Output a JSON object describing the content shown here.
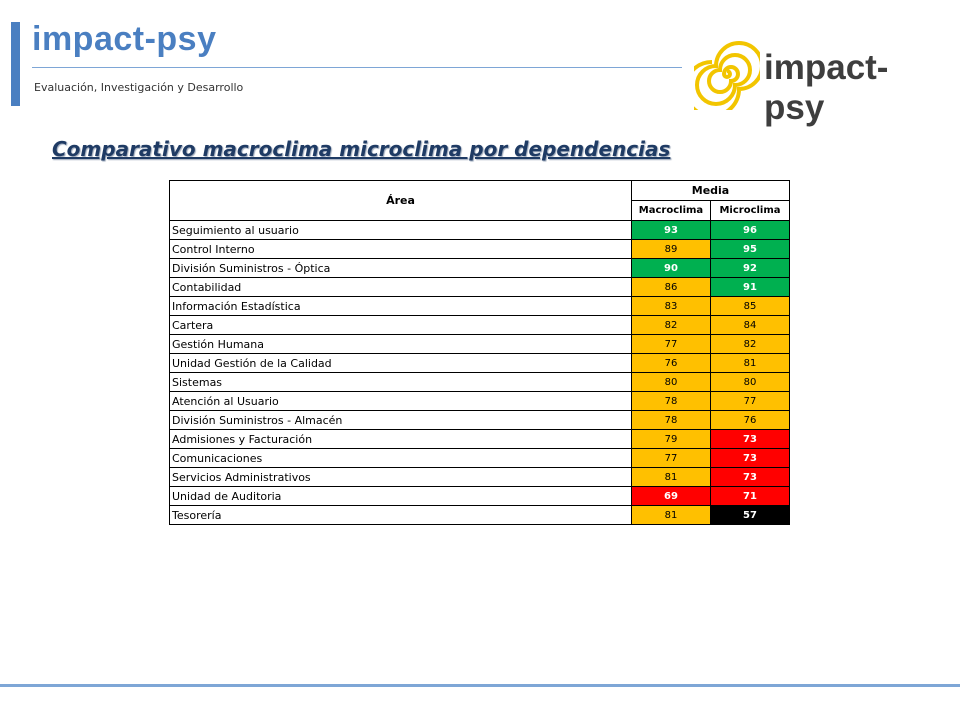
{
  "header": {
    "title": "impact-psy",
    "subtitle": "Evaluación, Investigación y Desarrollo",
    "logo_text": "impact-psy",
    "accent_color": "#4a7fc1"
  },
  "section_title": "Comparativo macroclima microclima por dependencias",
  "table": {
    "col_area": "Área",
    "col_group": "Media",
    "col_macro": "Macroclima",
    "col_micro": "Microclima",
    "rows": [
      {
        "area": "Seguimiento al usuario",
        "macro": "93",
        "micro": "96",
        "macro_color": "green",
        "micro_color": "green"
      },
      {
        "area": "Control Interno",
        "macro": "89",
        "micro": "95",
        "macro_color": "yellow",
        "micro_color": "green"
      },
      {
        "area": "División Suministros - Óptica",
        "macro": "90",
        "micro": "92",
        "macro_color": "green",
        "micro_color": "green"
      },
      {
        "area": "Contabilidad",
        "macro": "86",
        "micro": "91",
        "macro_color": "yellow",
        "micro_color": "green"
      },
      {
        "area": "Información Estadística",
        "macro": "83",
        "micro": "85",
        "macro_color": "yellow",
        "micro_color": "yellow"
      },
      {
        "area": "Cartera",
        "macro": "82",
        "micro": "84",
        "macro_color": "yellow",
        "micro_color": "yellow"
      },
      {
        "area": "Gestión Humana",
        "macro": "77",
        "micro": "82",
        "macro_color": "yellow",
        "micro_color": "yellow"
      },
      {
        "area": "Unidad Gestión de la Calidad",
        "macro": "76",
        "micro": "81",
        "macro_color": "yellow",
        "micro_color": "yellow"
      },
      {
        "area": "Sistemas",
        "macro": "80",
        "micro": "80",
        "macro_color": "yellow",
        "micro_color": "yellow"
      },
      {
        "area": "Atención al Usuario",
        "macro": "78",
        "micro": "77",
        "macro_color": "yellow",
        "micro_color": "yellow"
      },
      {
        "area": "División Suministros - Almacén",
        "macro": "78",
        "micro": "76",
        "macro_color": "yellow",
        "micro_color": "yellow"
      },
      {
        "area": "Admisiones y Facturación",
        "macro": "79",
        "micro": "73",
        "macro_color": "yellow",
        "micro_color": "red"
      },
      {
        "area": "Comunicaciones",
        "macro": "77",
        "micro": "73",
        "macro_color": "yellow",
        "micro_color": "red"
      },
      {
        "area": "Servicios Administrativos",
        "macro": "81",
        "micro": "73",
        "macro_color": "yellow",
        "micro_color": "red"
      },
      {
        "area": "Unidad de Auditoria",
        "macro": "69",
        "micro": "71",
        "macro_color": "red",
        "micro_color": "red"
      },
      {
        "area": "Tesorería",
        "macro": "81",
        "micro": "57",
        "macro_color": "yellow",
        "micro_color": "black"
      }
    ]
  }
}
